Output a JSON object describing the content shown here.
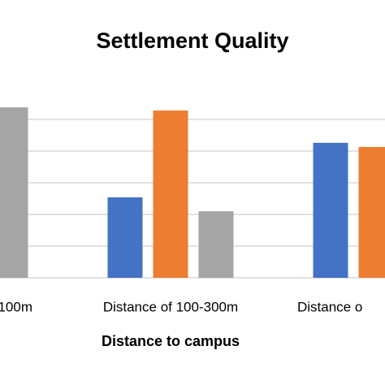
{
  "chart_data": {
    "type": "bar",
    "title": "Settlement Quality",
    "x_label": "Distance to campus",
    "categories": [
      "100m",
      "Distance of 100-300m",
      "Distance o"
    ],
    "series": [
      {
        "color": "#4472c4",
        "values": [
          null,
          2.54,
          4.26
        ]
      },
      {
        "color": "#ed7d31",
        "values": [
          null,
          5.28,
          4.13
        ]
      },
      {
        "color": "#a5a5a5",
        "values": [
          5.38,
          2.1,
          null
        ]
      }
    ],
    "ylim": [
      0,
      5.5
    ],
    "yticks": [
      0,
      1,
      2,
      3,
      4,
      5
    ],
    "grid": true,
    "tick_labels": false
  }
}
